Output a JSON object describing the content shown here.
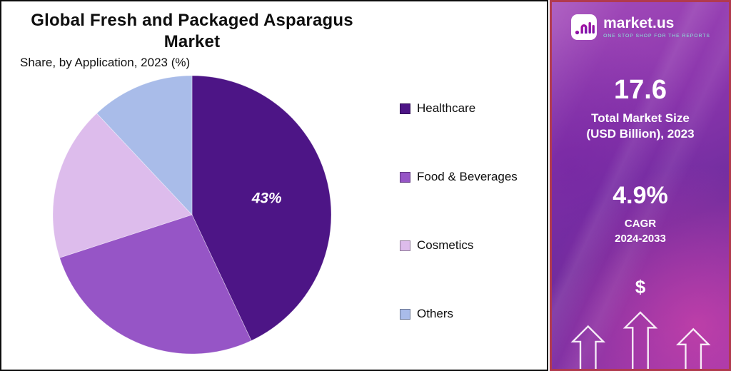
{
  "header": {
    "title": "Global Fresh and Packaged Asparagus Market",
    "subtitle": "Share, by Application, 2023 (%)"
  },
  "chart_data": {
    "type": "pie",
    "title": "Global Fresh and Packaged Asparagus Market",
    "subtitle": "Share, by Application, 2023 (%)",
    "labels": [
      "Healthcare",
      "Food & Beverages",
      "Cosmetics",
      "Others"
    ],
    "values": [
      43,
      27,
      18,
      12
    ],
    "unit": "%",
    "colors": [
      "#4d1586",
      "#9655c6",
      "#ddbcec",
      "#a9bce9"
    ],
    "data_labels": [
      "43%",
      "",
      "",
      ""
    ],
    "legend_position": "right",
    "start_angle": "top",
    "direction": "clockwise"
  },
  "sidebar": {
    "brand": "market.us",
    "tagline": "ONE STOP SHOP FOR THE REPORTS",
    "market_size_value": "17.6",
    "market_size_label_line1": "Total Market Size",
    "market_size_label_line2": "(USD Billion), 2023",
    "cagr_value": "4.9%",
    "cagr_label": "CAGR",
    "cagr_period": "2024-2033",
    "dollar_icon": "$"
  }
}
